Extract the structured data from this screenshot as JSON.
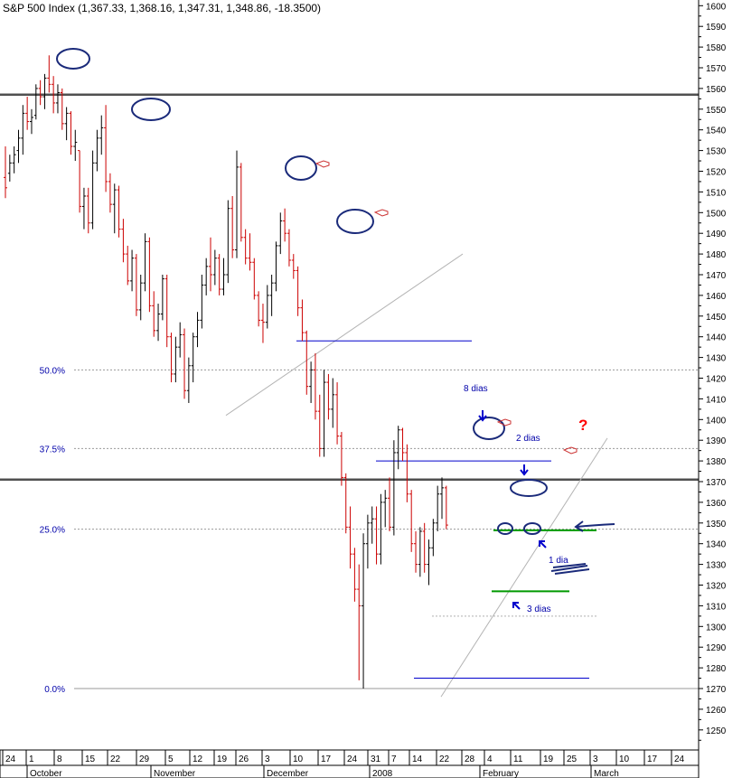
{
  "chart_title": "S&P 500 Index (1,367.33, 1,368.16, 1,347.31, 1,348.86, -18.3500)",
  "colors": {
    "up_bar": "#000000",
    "down_bar": "#cc0000",
    "horizontal_line": "#0000cc",
    "support_line": "#009900",
    "annotation_circle": "#1a2a7a",
    "trend_line": "#b4b4b4",
    "resistance_line": "#505050",
    "fib_label": "#0000aa",
    "question_mark": "#ff0000"
  },
  "chart_data": {
    "type": "ohlc",
    "ylim": [
      1240,
      1605
    ],
    "y_ticks": [
      1250,
      1260,
      1270,
      1280,
      1290,
      1300,
      1310,
      1320,
      1330,
      1340,
      1350,
      1360,
      1370,
      1380,
      1390,
      1400,
      1410,
      1420,
      1430,
      1440,
      1450,
      1460,
      1470,
      1480,
      1490,
      1500,
      1510,
      1520,
      1530,
      1540,
      1550,
      1560,
      1570,
      1580,
      1590,
      1600
    ],
    "x_tick_labels": [
      "24",
      "1",
      "8",
      "15",
      "22",
      "29",
      "5",
      "12",
      "19",
      "26",
      "3",
      "10",
      "17",
      "24",
      "31",
      "7",
      "14",
      "22",
      "28",
      "4",
      "11",
      "19",
      "25",
      "3",
      "10",
      "17",
      "24"
    ],
    "month_labels": [
      "October",
      "November",
      "December",
      "2008",
      "February",
      "March"
    ],
    "fib_levels": [
      {
        "label": "50.0%",
        "value": 1424
      },
      {
        "label": "37.5%",
        "value": 1386
      },
      {
        "label": "25.0%",
        "value": 1347
      },
      {
        "label": "0.0%",
        "value": 1270
      }
    ],
    "resistance_levels": [
      1557,
      1371
    ],
    "bars": [
      {
        "o": 1517,
        "h": 1532,
        "l": 1507,
        "c": 1512
      },
      {
        "o": 1519,
        "h": 1528,
        "l": 1515,
        "c": 1524
      },
      {
        "o": 1524,
        "h": 1532,
        "l": 1519,
        "c": 1528
      },
      {
        "o": 1530,
        "h": 1540,
        "l": 1524,
        "c": 1536
      },
      {
        "o": 1536,
        "h": 1552,
        "l": 1528,
        "c": 1548
      },
      {
        "o": 1548,
        "h": 1556,
        "l": 1540,
        "c": 1544
      },
      {
        "o": 1544,
        "h": 1550,
        "l": 1538,
        "c": 1546
      },
      {
        "o": 1547,
        "h": 1562,
        "l": 1545,
        "c": 1560
      },
      {
        "o": 1560,
        "h": 1564,
        "l": 1552,
        "c": 1556
      },
      {
        "o": 1556,
        "h": 1567,
        "l": 1550,
        "c": 1565
      },
      {
        "o": 1565,
        "h": 1576,
        "l": 1558,
        "c": 1562
      },
      {
        "o": 1562,
        "h": 1566,
        "l": 1548,
        "c": 1553
      },
      {
        "o": 1553,
        "h": 1562,
        "l": 1548,
        "c": 1558
      },
      {
        "o": 1558,
        "h": 1560,
        "l": 1540,
        "c": 1543
      },
      {
        "o": 1543,
        "h": 1551,
        "l": 1535,
        "c": 1548
      },
      {
        "o": 1548,
        "h": 1549,
        "l": 1528,
        "c": 1532
      },
      {
        "o": 1532,
        "h": 1540,
        "l": 1525,
        "c": 1534
      },
      {
        "o": 1530,
        "h": 1530,
        "l": 1500,
        "c": 1503
      },
      {
        "o": 1503,
        "h": 1512,
        "l": 1492,
        "c": 1508
      },
      {
        "o": 1508,
        "h": 1512,
        "l": 1490,
        "c": 1495
      },
      {
        "o": 1495,
        "h": 1530,
        "l": 1492,
        "c": 1524
      },
      {
        "o": 1524,
        "h": 1540,
        "l": 1520,
        "c": 1536
      },
      {
        "o": 1536,
        "h": 1547,
        "l": 1528,
        "c": 1541
      },
      {
        "o": 1541,
        "h": 1552,
        "l": 1510,
        "c": 1515
      },
      {
        "o": 1515,
        "h": 1519,
        "l": 1500,
        "c": 1504
      },
      {
        "o": 1504,
        "h": 1514,
        "l": 1490,
        "c": 1511
      },
      {
        "o": 1511,
        "h": 1513,
        "l": 1488,
        "c": 1492
      },
      {
        "o": 1492,
        "h": 1497,
        "l": 1476,
        "c": 1480
      },
      {
        "o": 1480,
        "h": 1484,
        "l": 1465,
        "c": 1467
      },
      {
        "o": 1467,
        "h": 1482,
        "l": 1462,
        "c": 1478
      },
      {
        "o": 1478,
        "h": 1480,
        "l": 1450,
        "c": 1453
      },
      {
        "o": 1453,
        "h": 1470,
        "l": 1448,
        "c": 1466
      },
      {
        "o": 1466,
        "h": 1490,
        "l": 1462,
        "c": 1486
      },
      {
        "o": 1486,
        "h": 1488,
        "l": 1452,
        "c": 1455
      },
      {
        "o": 1455,
        "h": 1462,
        "l": 1440,
        "c": 1443
      },
      {
        "o": 1443,
        "h": 1456,
        "l": 1438,
        "c": 1451
      },
      {
        "o": 1451,
        "h": 1470,
        "l": 1448,
        "c": 1468
      },
      {
        "o": 1468,
        "h": 1470,
        "l": 1435,
        "c": 1440
      },
      {
        "o": 1440,
        "h": 1442,
        "l": 1418,
        "c": 1422
      },
      {
        "o": 1422,
        "h": 1440,
        "l": 1418,
        "c": 1435
      },
      {
        "o": 1435,
        "h": 1447,
        "l": 1430,
        "c": 1441
      },
      {
        "o": 1441,
        "h": 1444,
        "l": 1410,
        "c": 1414
      },
      {
        "o": 1414,
        "h": 1430,
        "l": 1408,
        "c": 1426
      },
      {
        "o": 1426,
        "h": 1442,
        "l": 1418,
        "c": 1440
      },
      {
        "o": 1440,
        "h": 1452,
        "l": 1435,
        "c": 1448
      },
      {
        "o": 1448,
        "h": 1470,
        "l": 1444,
        "c": 1465
      },
      {
        "o": 1465,
        "h": 1478,
        "l": 1460,
        "c": 1474
      },
      {
        "o": 1474,
        "h": 1488,
        "l": 1462,
        "c": 1470
      },
      {
        "o": 1470,
        "h": 1482,
        "l": 1465,
        "c": 1478
      },
      {
        "o": 1478,
        "h": 1480,
        "l": 1460,
        "c": 1463
      },
      {
        "o": 1463,
        "h": 1478,
        "l": 1460,
        "c": 1470
      },
      {
        "o": 1470,
        "h": 1506,
        "l": 1466,
        "c": 1502
      },
      {
        "o": 1502,
        "h": 1508,
        "l": 1478,
        "c": 1482
      },
      {
        "o": 1482,
        "h": 1530,
        "l": 1478,
        "c": 1522
      },
      {
        "o": 1522,
        "h": 1524,
        "l": 1486,
        "c": 1488
      },
      {
        "o": 1488,
        "h": 1492,
        "l": 1475,
        "c": 1478
      },
      {
        "o": 1478,
        "h": 1490,
        "l": 1472,
        "c": 1476
      },
      {
        "o": 1476,
        "h": 1478,
        "l": 1458,
        "c": 1460
      },
      {
        "o": 1460,
        "h": 1462,
        "l": 1445,
        "c": 1448
      },
      {
        "o": 1448,
        "h": 1456,
        "l": 1437,
        "c": 1447
      },
      {
        "o": 1447,
        "h": 1465,
        "l": 1444,
        "c": 1460
      },
      {
        "o": 1460,
        "h": 1470,
        "l": 1450,
        "c": 1466
      },
      {
        "o": 1466,
        "h": 1486,
        "l": 1462,
        "c": 1484
      },
      {
        "o": 1484,
        "h": 1500,
        "l": 1480,
        "c": 1496
      },
      {
        "o": 1496,
        "h": 1502,
        "l": 1486,
        "c": 1490
      },
      {
        "o": 1490,
        "h": 1492,
        "l": 1474,
        "c": 1477
      },
      {
        "o": 1477,
        "h": 1480,
        "l": 1468,
        "c": 1472
      },
      {
        "o": 1472,
        "h": 1474,
        "l": 1450,
        "c": 1454
      },
      {
        "o": 1454,
        "h": 1458,
        "l": 1438,
        "c": 1442
      },
      {
        "o": 1442,
        "h": 1443,
        "l": 1412,
        "c": 1416
      },
      {
        "o": 1416,
        "h": 1428,
        "l": 1408,
        "c": 1424
      },
      {
        "o": 1424,
        "h": 1432,
        "l": 1400,
        "c": 1404
      },
      {
        "o": 1404,
        "h": 1412,
        "l": 1382,
        "c": 1386
      },
      {
        "o": 1386,
        "h": 1424,
        "l": 1382,
        "c": 1418
      },
      {
        "o": 1418,
        "h": 1422,
        "l": 1400,
        "c": 1405
      },
      {
        "o": 1405,
        "h": 1420,
        "l": 1396,
        "c": 1412
      },
      {
        "o": 1412,
        "h": 1418,
        "l": 1388,
        "c": 1392
      },
      {
        "o": 1392,
        "h": 1394,
        "l": 1368,
        "c": 1372
      },
      {
        "o": 1372,
        "h": 1374,
        "l": 1345,
        "c": 1348
      },
      {
        "o": 1348,
        "h": 1358,
        "l": 1328,
        "c": 1335
      },
      {
        "o": 1335,
        "h": 1338,
        "l": 1312,
        "c": 1318
      },
      {
        "o": 1318,
        "h": 1330,
        "l": 1274,
        "c": 1310
      },
      {
        "o": 1310,
        "h": 1345,
        "l": 1270,
        "c": 1340
      },
      {
        "o": 1340,
        "h": 1354,
        "l": 1328,
        "c": 1350
      },
      {
        "o": 1350,
        "h": 1358,
        "l": 1340,
        "c": 1352
      },
      {
        "o": 1352,
        "h": 1358,
        "l": 1330,
        "c": 1335
      },
      {
        "o": 1335,
        "h": 1364,
        "l": 1330,
        "c": 1360
      },
      {
        "o": 1360,
        "h": 1366,
        "l": 1348,
        "c": 1362
      },
      {
        "o": 1362,
        "h": 1372,
        "l": 1346,
        "c": 1348
      },
      {
        "o": 1348,
        "h": 1390,
        "l": 1344,
        "c": 1384
      },
      {
        "o": 1384,
        "h": 1397,
        "l": 1376,
        "c": 1395
      },
      {
        "o": 1395,
        "h": 1396,
        "l": 1380,
        "c": 1384
      },
      {
        "o": 1384,
        "h": 1388,
        "l": 1360,
        "c": 1364
      },
      {
        "o": 1364,
        "h": 1366,
        "l": 1336,
        "c": 1340
      },
      {
        "o": 1340,
        "h": 1346,
        "l": 1326,
        "c": 1330
      },
      {
        "o": 1330,
        "h": 1348,
        "l": 1324,
        "c": 1346
      },
      {
        "o": 1346,
        "h": 1350,
        "l": 1326,
        "c": 1330
      },
      {
        "o": 1330,
        "h": 1342,
        "l": 1320,
        "c": 1338
      },
      {
        "o": 1338,
        "h": 1352,
        "l": 1334,
        "c": 1350
      },
      {
        "o": 1350,
        "h": 1368,
        "l": 1346,
        "c": 1364
      },
      {
        "o": 1364,
        "h": 1372,
        "l": 1352,
        "c": 1367
      },
      {
        "o": 1367,
        "h": 1368,
        "l": 1347,
        "c": 1349
      }
    ],
    "annotations": [
      {
        "text": "8 dias"
      },
      {
        "text": "2 dias"
      },
      {
        "text": "1 dia"
      },
      {
        "text": "3 dias"
      },
      {
        "text": "?"
      }
    ]
  }
}
